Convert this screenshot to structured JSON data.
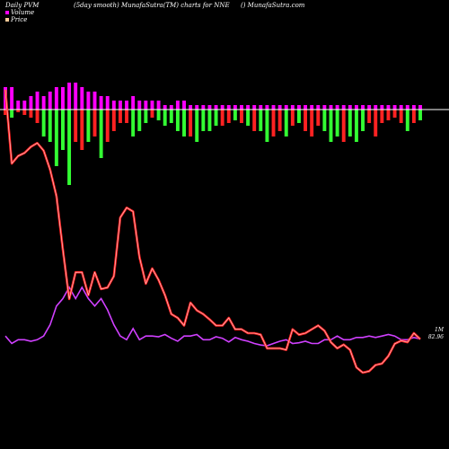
{
  "header": {
    "left": "Daily PVM",
    "center": "(5day smooth) MunafaSutra(TM) charts for NNE",
    "right": "() MunafaSutra.com"
  },
  "legend": {
    "volume_label": "Volume",
    "price_label": "Price",
    "volume_color": "#ff00ff",
    "price_color": "#ffcc99"
  },
  "right_labels": {
    "line1": "1M",
    "line2": "82.96"
  },
  "colors": {
    "background": "#000000",
    "price_line": "#ff2222",
    "volume_line": "#d040ff",
    "bar_up": "#33ff33",
    "bar_down": "#ff2222",
    "bar_upper": "#ff00ff",
    "baseline": "#ffffff"
  },
  "chart_data": {
    "type": "line",
    "price": [
      380,
      283,
      293,
      297,
      305,
      310,
      300,
      275,
      240,
      170,
      105,
      140,
      140,
      110,
      140,
      118,
      120,
      135,
      212,
      225,
      220,
      160,
      125,
      145,
      130,
      110,
      85,
      80,
      70,
      100,
      90,
      85,
      78,
      70,
      70,
      80,
      65,
      65,
      60,
      60,
      58,
      40,
      40,
      40,
      38,
      65,
      58,
      60,
      65,
      70,
      63,
      48,
      40,
      45,
      38,
      15,
      8,
      10,
      18,
      20,
      30,
      46,
      50,
      48,
      60,
      52
    ],
    "volume": [
      150,
      140,
      145,
      145,
      143,
      145,
      150,
      165,
      190,
      200,
      215,
      200,
      215,
      200,
      190,
      200,
      185,
      165,
      150,
      145,
      160,
      145,
      150,
      150,
      149,
      152,
      147,
      143,
      150,
      150,
      152,
      145,
      145,
      149,
      147,
      142,
      148,
      145,
      143,
      140,
      138,
      137,
      140,
      143,
      145,
      140,
      141,
      143,
      140,
      140,
      145,
      145,
      150,
      145,
      145,
      148,
      148,
      150,
      148,
      150,
      152,
      150,
      145,
      145,
      148,
      146
    ],
    "bars_up": [
      5,
      5,
      2,
      2,
      3,
      4,
      3,
      4,
      5,
      5,
      6,
      6,
      5,
      4,
      4,
      3,
      3,
      2,
      2,
      2,
      3,
      2,
      2,
      2,
      2,
      1,
      1,
      2,
      2,
      1,
      1,
      1,
      1,
      1,
      1,
      1,
      1,
      1,
      1,
      1,
      1,
      1,
      1,
      1,
      1,
      1,
      1,
      1,
      1,
      1,
      1,
      1,
      1,
      1,
      1,
      1,
      1,
      1,
      1,
      1,
      1,
      1,
      1,
      1,
      1,
      1
    ],
    "bars_down": [
      -2,
      -3,
      -1,
      -2,
      -3,
      -5,
      -10,
      -12,
      -21,
      -15,
      -28,
      -12,
      -15,
      -12,
      -10,
      -18,
      -12,
      -8,
      -5,
      -5,
      -10,
      -8,
      -5,
      -3,
      -4,
      -6,
      -5,
      -8,
      -10,
      -10,
      -12,
      -8,
      -8,
      -6,
      -6,
      -5,
      -4,
      -5,
      -6,
      -8,
      -8,
      -12,
      -10,
      -8,
      -10,
      -6,
      -5,
      -8,
      -10,
      -6,
      -8,
      -12,
      -10,
      -12,
      -10,
      -12,
      -8,
      -5,
      -10,
      -5,
      -4,
      -3,
      -5,
      -8,
      -5,
      -4
    ]
  }
}
